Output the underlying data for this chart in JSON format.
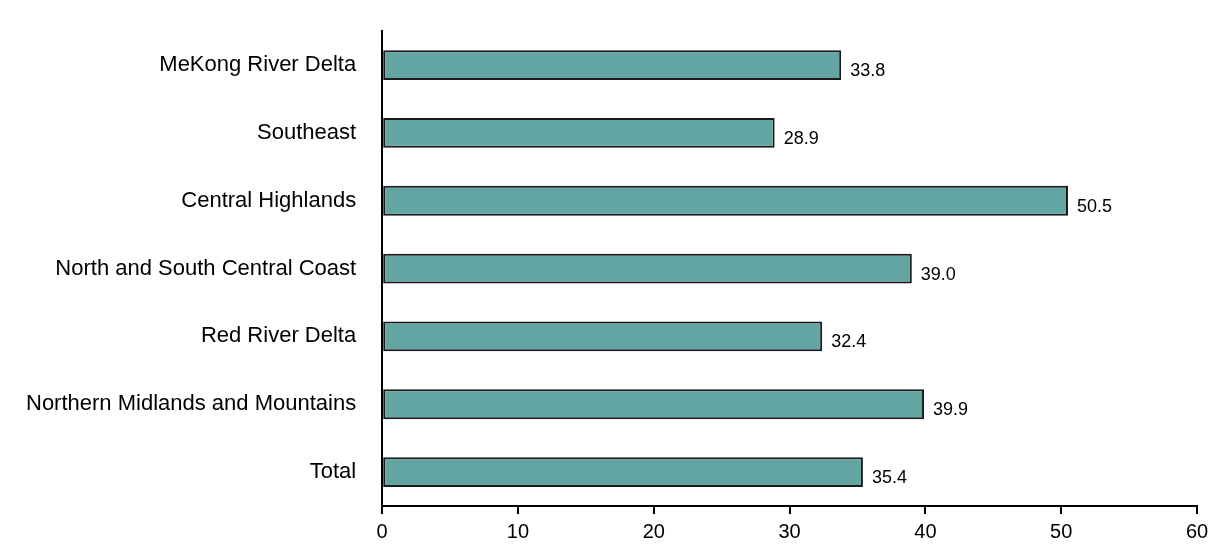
{
  "chart_data": {
    "type": "bar",
    "orientation": "horizontal",
    "categories": [
      "MeKong River Delta",
      "Southeast",
      "Central Highlands",
      "North and South Central Coast",
      "Red River Delta",
      "Northern Midlands and Mountains",
      "Total"
    ],
    "values": [
      33.8,
      28.9,
      50.5,
      39.0,
      32.4,
      39.9,
      35.4
    ],
    "color": "#62a5a3",
    "xlim": [
      0,
      60
    ],
    "xticks": [
      0,
      10,
      20,
      30,
      40,
      50,
      60
    ],
    "value_labels": [
      "33.8",
      "28.9",
      "50.5",
      "39.0",
      "32.4",
      "39.9",
      "35.4"
    ]
  }
}
